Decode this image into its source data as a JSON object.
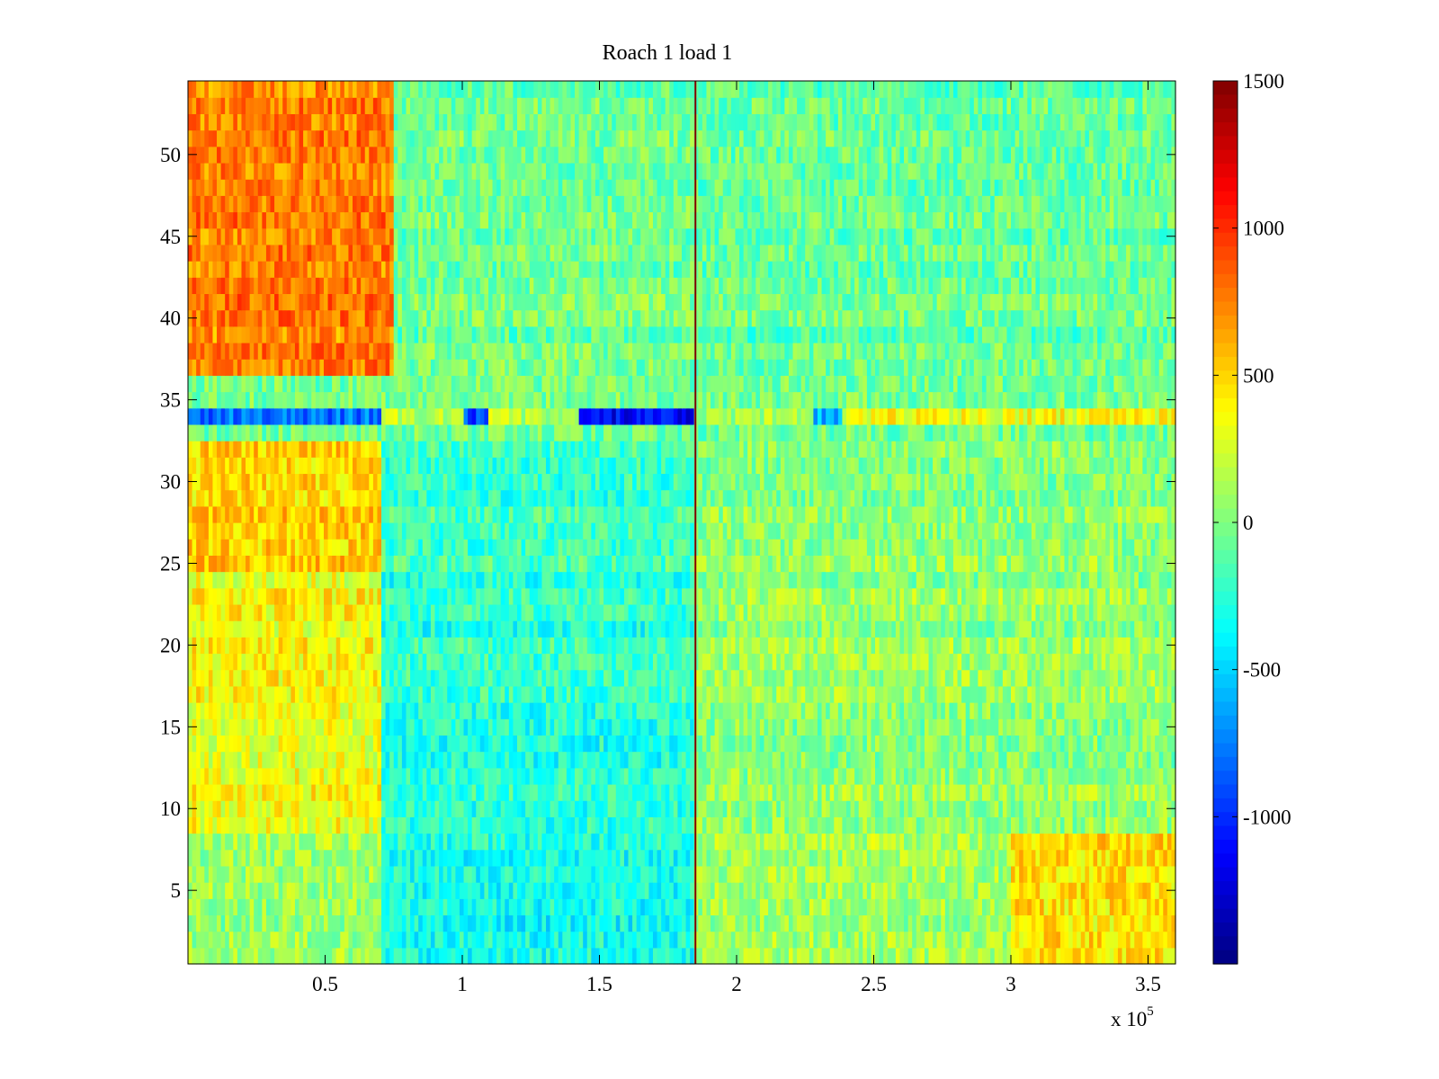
{
  "chart_data": {
    "type": "heatmap",
    "title": "Roach 1 load 1",
    "xlabel": "",
    "ylabel": "",
    "x_multiplier_label": {
      "base": "x 10",
      "exponent": "5"
    },
    "xlim": [
      0,
      3.6
    ],
    "ylim": [
      0.5,
      54.5
    ],
    "x_ticks": [
      0.5,
      1,
      1.5,
      2,
      2.5,
      3,
      3.5
    ],
    "x_tick_labels": [
      "0.5",
      "1",
      "1.5",
      "2",
      "2.5",
      "3",
      "3.5"
    ],
    "y_ticks": [
      5,
      10,
      15,
      20,
      25,
      30,
      35,
      40,
      45,
      50
    ],
    "y_tick_labels": [
      "5",
      "10",
      "15",
      "20",
      "25",
      "30",
      "35",
      "40",
      "45",
      "50"
    ],
    "rows": 54,
    "colormap": "jet",
    "colorbar": {
      "range": [
        -1500,
        1500
      ],
      "ticks": [
        1500,
        1000,
        500,
        0,
        -500,
        -1000
      ],
      "tick_labels": [
        "1500",
        "1000",
        "500",
        "0",
        "-500",
        "-1000"
      ]
    },
    "row_trends": [
      {
        "rows": [
          37,
          54
        ],
        "segments": [
          [
            0,
            0.75,
            750
          ],
          [
            0.75,
            1.85,
            -50
          ],
          [
            1.85,
            3.6,
            -80
          ]
        ]
      },
      {
        "rows": [
          34,
          34
        ],
        "segments": [
          [
            0,
            0.7,
            -750
          ],
          [
            0.7,
            1.0,
            200
          ],
          [
            1.0,
            1.1,
            -850
          ],
          [
            1.1,
            1.42,
            200
          ],
          [
            1.42,
            1.85,
            -1100
          ],
          [
            1.85,
            2.28,
            150
          ],
          [
            2.28,
            2.38,
            -600
          ],
          [
            2.38,
            3.6,
            380
          ]
        ]
      },
      {
        "rows": [
          25,
          32
        ],
        "segments": [
          [
            0,
            0.7,
            500
          ],
          [
            0.7,
            1.85,
            -200
          ],
          [
            1.85,
            3.6,
            20
          ]
        ]
      },
      {
        "rows": [
          9,
          24
        ],
        "segments": [
          [
            0,
            0.7,
            350
          ],
          [
            0.7,
            1.85,
            -250
          ],
          [
            1.85,
            3.6,
            50
          ]
        ]
      },
      {
        "rows": [
          1,
          8
        ],
        "segments": [
          [
            0,
            0.7,
            80
          ],
          [
            0.7,
            1.85,
            -320
          ],
          [
            1.85,
            3.0,
            100
          ],
          [
            3.0,
            3.6,
            450
          ]
        ]
      }
    ],
    "annotations": [
      {
        "type": "vertical-line",
        "x": 1.85,
        "value": 1500
      }
    ]
  }
}
